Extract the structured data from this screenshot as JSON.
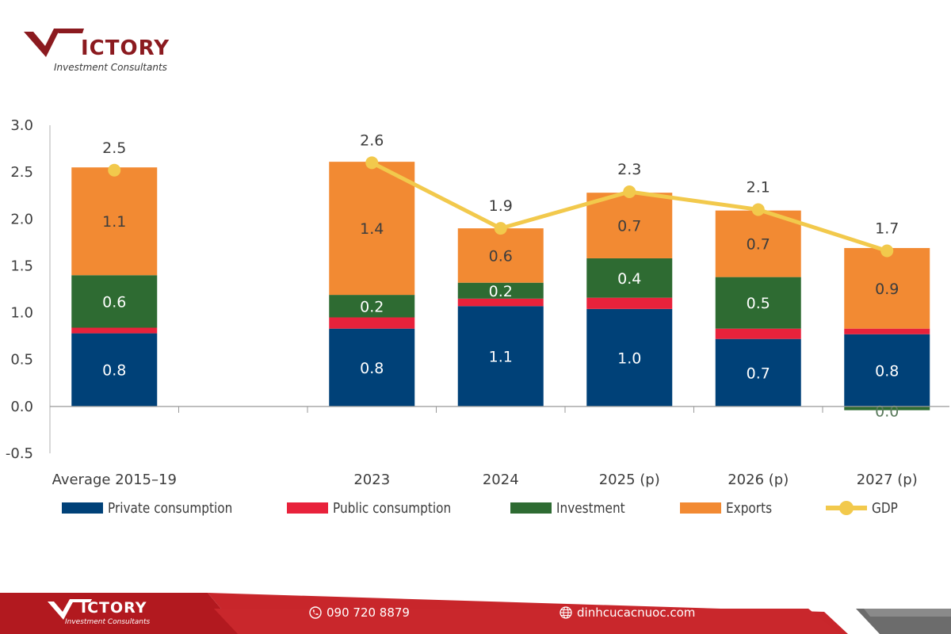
{
  "brand": {
    "name": "ICTORY",
    "tagline": "Investment Consultants",
    "colors": {
      "primary": "#8b1a1f",
      "footer_dark": "#b2191f",
      "footer_light": "#cf2a2e"
    }
  },
  "chart_data": {
    "type": "bar",
    "stacked": true,
    "categories": [
      "Average 2015–19",
      "2023",
      "2024",
      "2025 (p)",
      "2026 (p)",
      "2027 (p)"
    ],
    "slots": [
      0,
      2,
      3,
      4,
      5,
      6
    ],
    "series": [
      {
        "name": "Private consumption",
        "color": "#004178",
        "values": [
          0.78,
          0.83,
          1.07,
          1.04,
          0.72,
          0.77
        ],
        "labels": [
          "0.8",
          "0.8",
          "1.1",
          "1.0",
          "0.7",
          "0.8"
        ]
      },
      {
        "name": "Public consumption",
        "color": "#e8223b",
        "values": [
          0.06,
          0.12,
          0.08,
          0.12,
          0.11,
          0.06
        ],
        "labels": []
      },
      {
        "name": "Investment",
        "color": "#2e6b32",
        "values": [
          0.56,
          0.24,
          0.17,
          0.42,
          0.55,
          -0.04
        ],
        "labels": [
          "0.6",
          "0.2",
          "0.2",
          "0.4",
          "0.5",
          "0.0"
        ]
      },
      {
        "name": "Exports",
        "color": "#f28a33",
        "values": [
          1.15,
          1.42,
          0.58,
          0.7,
          0.71,
          0.86
        ],
        "labels": [
          "1.1",
          "1.4",
          "0.6",
          "0.7",
          "0.7",
          "0.9"
        ]
      }
    ],
    "gdp": {
      "name": "GDP",
      "color": "#f2c94c",
      "values": [
        2.52,
        2.6,
        1.9,
        2.29,
        2.1,
        1.66
      ],
      "labels": [
        "2.5",
        "2.6",
        "1.9",
        "2.3",
        "2.1",
        "1.7"
      ],
      "line_connects": [
        false,
        true,
        true,
        true,
        true,
        true
      ]
    },
    "yticks": [
      "3.0",
      "2.5",
      "2.0",
      "1.5",
      "1.0",
      "0.5",
      "0.0",
      "-0.5"
    ],
    "ylim": [
      -0.5,
      3.0
    ],
    "grid": false,
    "legend_position": "bottom"
  },
  "footer": {
    "phone": "090 720 8879",
    "website": "dinhcucacnuoc.com"
  }
}
